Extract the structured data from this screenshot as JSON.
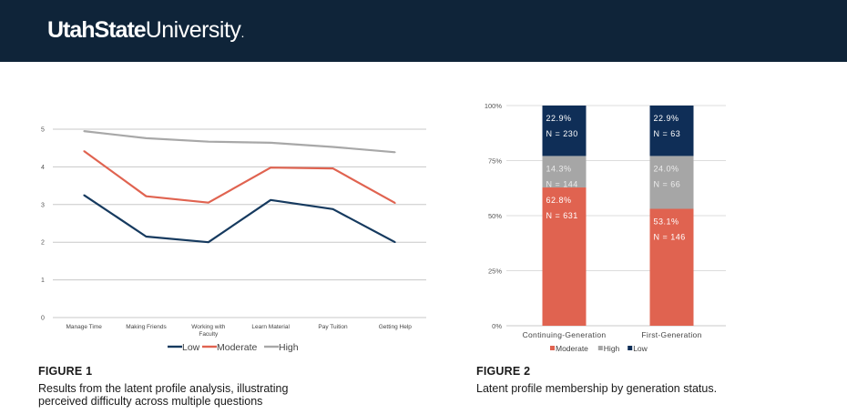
{
  "header": {
    "logo_bold": "UtahState",
    "logo_regular": "University",
    "logo_dot": ".",
    "colors": {
      "background": "#0f2439",
      "text": "#ffffff"
    }
  },
  "figure1": {
    "heading": "FIGURE 1",
    "caption": "Results from the latent profile analysis, illustrating perceived difficulty across multiple questions"
  },
  "figure2": {
    "heading": "FIGURE 2",
    "caption": "Latent profile membership by generation status."
  },
  "chart_data": [
    {
      "type": "line",
      "title": "",
      "xlabel": "",
      "ylabel": "",
      "categories": [
        "Manage Time",
        "Making Friends",
        "Working with Faculty",
        "Learn Material",
        "Pay Tuition",
        "Getting Help"
      ],
      "category_lines": [
        [
          "Manage Time"
        ],
        [
          "Making Friends"
        ],
        [
          "Working with",
          "Faculty"
        ],
        [
          "Learn Material"
        ],
        [
          "Pay Tuition"
        ],
        [
          "Getting Help"
        ]
      ],
      "yticks": [
        "0",
        "1",
        "2",
        "3",
        "4",
        "5"
      ],
      "ylim": [
        0,
        5
      ],
      "grid": true,
      "legend_position": "bottom",
      "series": [
        {
          "name": "Low",
          "color": "#163a5f",
          "values": [
            3.25,
            2.15,
            2.0,
            3.12,
            2.88,
            2.0
          ]
        },
        {
          "name": "Moderate",
          "color": "#e06350",
          "values": [
            4.42,
            3.22,
            3.05,
            3.98,
            3.96,
            3.04
          ]
        },
        {
          "name": "High",
          "color": "#a8a8a8",
          "values": [
            4.95,
            4.76,
            4.67,
            4.64,
            4.53,
            4.39
          ]
        }
      ]
    },
    {
      "type": "bar",
      "stacked": true,
      "title": "",
      "xlabel": "",
      "ylabel": "",
      "categories": [
        "Continuing-Generation",
        "First-Generation"
      ],
      "yticks": [
        "0%",
        "25%",
        "50%",
        "75%",
        "100%"
      ],
      "ylim": [
        0,
        100
      ],
      "grid": true,
      "legend_position": "bottom",
      "series": [
        {
          "name": "Moderate",
          "color": "#e06350",
          "values": [
            62.8,
            53.1
          ],
          "labels": [
            "62.8%",
            "53.1%"
          ],
          "counts": [
            "N = 631",
            "N = 146"
          ]
        },
        {
          "name": "High",
          "color": "#a6a6a6",
          "values": [
            14.3,
            24.0
          ],
          "labels": [
            "14.3%",
            "24.0%"
          ],
          "counts": [
            "N = 144",
            "N = 66"
          ]
        },
        {
          "name": "Low",
          "color": "#0f2e57",
          "values": [
            22.9,
            22.9
          ],
          "labels": [
            "22.9%",
            "22.9%"
          ],
          "counts": [
            "N = 230",
            "N = 63"
          ]
        }
      ]
    }
  ]
}
